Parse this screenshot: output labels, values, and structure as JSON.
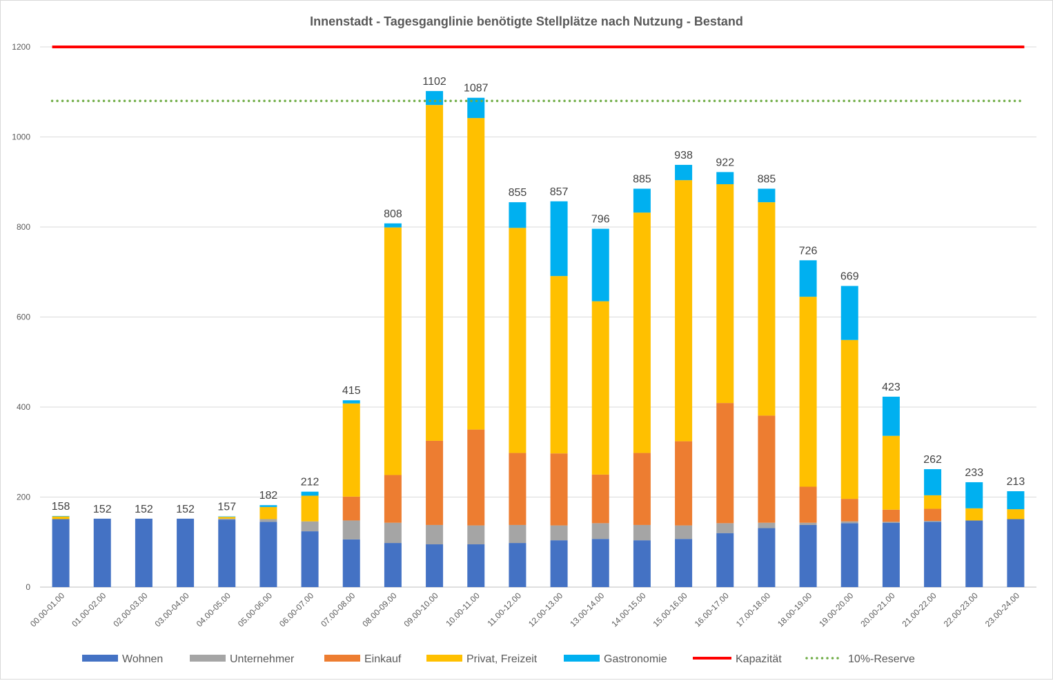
{
  "chart_data": {
    "type": "bar",
    "stacked": true,
    "title": "Innenstadt - Tagesganglinie benötigte Stellplätze nach Nutzung - Bestand",
    "xlabel": "",
    "ylabel": "",
    "ylim": [
      0,
      1200
    ],
    "yticks": [
      0,
      200,
      400,
      600,
      800,
      1000,
      1200
    ],
    "grid": true,
    "legend_position": "bottom",
    "categories": [
      "00.00-01.00",
      "01.00-02.00",
      "02.00-03.00",
      "03.00-04.00",
      "04.00-05.00",
      "05.00-06.00",
      "06.00-07.00",
      "07.00-08.00",
      "08.00-09.00",
      "09.00-10.00",
      "10.00-11.00",
      "11.00-12.00",
      "12.00-13.00",
      "13.00-14.00",
      "14.00-15.00",
      "15.00-16.00",
      "16.00-17.00",
      "17.00-18.00",
      "18.00-19.00",
      "19.00-20.00",
      "20.00-21.00",
      "21.00-22.00",
      "22.00-23.00",
      "23.00-24.00"
    ],
    "series": [
      {
        "name": "Wohnen",
        "color": "#4472C4",
        "values": [
          151,
          152,
          152,
          152,
          150,
          145,
          124,
          106,
          98,
          95,
          95,
          98,
          104,
          107,
          104,
          107,
          120,
          131,
          138,
          142,
          143,
          145,
          148,
          151
        ]
      },
      {
        "name": "Unternehmer",
        "color": "#A5A5A5",
        "values": [
          0,
          0,
          0,
          0,
          2,
          6,
          22,
          42,
          45,
          43,
          42,
          40,
          33,
          35,
          34,
          30,
          22,
          12,
          5,
          4,
          2,
          2,
          0,
          0
        ]
      },
      {
        "name": "Einkauf",
        "color": "#ED7D31",
        "values": [
          0,
          0,
          0,
          0,
          0,
          0,
          0,
          53,
          106,
          187,
          213,
          160,
          160,
          108,
          160,
          187,
          267,
          238,
          80,
          50,
          27,
          27,
          0,
          0
        ]
      },
      {
        "name": "Privat, Freizeit",
        "color": "#FFC000",
        "values": [
          6,
          0,
          0,
          0,
          4,
          27,
          57,
          207,
          550,
          746,
          692,
          500,
          394,
          385,
          534,
          580,
          486,
          474,
          422,
          353,
          164,
          30,
          27,
          22
        ]
      },
      {
        "name": "Gastronomie",
        "color": "#00B0F0",
        "values": [
          1,
          0,
          0,
          0,
          1,
          4,
          9,
          7,
          9,
          31,
          45,
          57,
          166,
          161,
          53,
          34,
          27,
          30,
          81,
          120,
          87,
          58,
          58,
          40
        ]
      }
    ],
    "totals": [
      158,
      152,
      152,
      152,
      157,
      182,
      212,
      415,
      808,
      1102,
      1087,
      855,
      857,
      796,
      885,
      938,
      922,
      885,
      726,
      669,
      423,
      262,
      233,
      213
    ],
    "lines": [
      {
        "name": "Kapazität",
        "color": "#FF0000",
        "value": 1200,
        "style": "solid"
      },
      {
        "name": "10%-Reserve",
        "color": "#70AD47",
        "value": 1080,
        "style": "dotted"
      }
    ]
  }
}
